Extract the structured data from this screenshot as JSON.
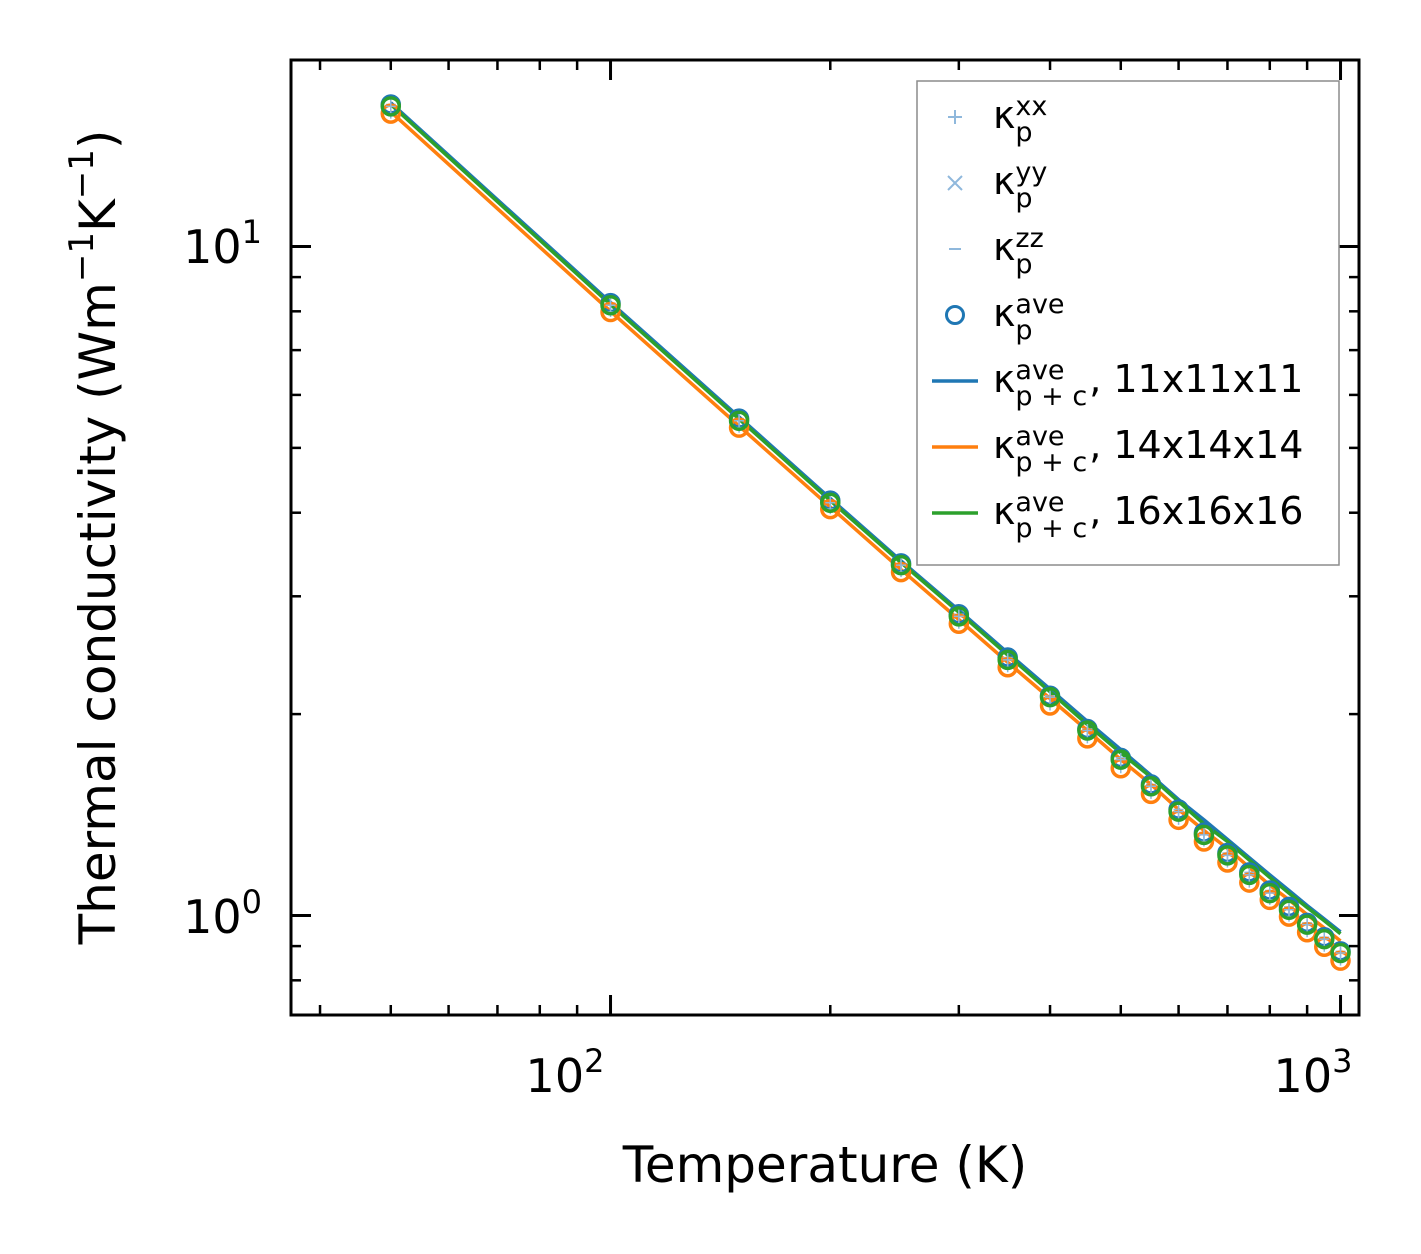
{
  "chart_data": {
    "type": "line",
    "title": "",
    "xlabel": "Temperature (K)",
    "ylabel": "Thermal conductivity (Wm",
    "ylabel_sup1": "−1",
    "ylabel_mid": "K",
    "ylabel_sup2": "−1",
    "ylabel_end": ")",
    "xscale": "log",
    "yscale": "log",
    "xlim": [
      36.5,
      1060
    ],
    "ylim": [
      0.71,
      19.0
    ],
    "x_ticks": [
      {
        "base": "10",
        "exp": "2",
        "value": 100
      },
      {
        "base": "10",
        "exp": "3",
        "value": 1000
      }
    ],
    "y_ticks": [
      {
        "base": "10",
        "exp": "0",
        "value": 1
      },
      {
        "base": "10",
        "exp": "1",
        "value": 10
      }
    ],
    "legend_position": "upper right",
    "legend": [
      {
        "sym": "κ",
        "sup": "xx",
        "sub": "p",
        "tail": "",
        "marker": "plus",
        "color": "#8fb8dc"
      },
      {
        "sym": "κ",
        "sup": "yy",
        "sub": "p",
        "tail": "",
        "marker": "x",
        "color": "#8fb8dc"
      },
      {
        "sym": "κ",
        "sup": "zz",
        "sub": "p",
        "tail": "",
        "marker": "hline",
        "color": "#8fb8dc"
      },
      {
        "sym": "κ",
        "sup": "ave",
        "sub": "p",
        "tail": "",
        "marker": "circle",
        "color": "#1f77b4"
      },
      {
        "sym": "κ",
        "sup": "ave",
        "sub": "p + c",
        "tail": ", 11x11x11",
        "marker": "line",
        "color": "#1f77b4"
      },
      {
        "sym": "κ",
        "sup": "ave",
        "sub": "p + c",
        "tail": ", 14x14x14",
        "marker": "line",
        "color": "#ff7f0e"
      },
      {
        "sym": "κ",
        "sup": "ave",
        "sub": "p + c",
        "tail": ", 16x16x16",
        "marker": "line",
        "color": "#2ca02c"
      }
    ],
    "x": [
      50,
      100,
      150,
      200,
      250,
      300,
      350,
      400,
      450,
      500,
      550,
      600,
      650,
      700,
      750,
      800,
      850,
      900,
      950,
      1000
    ],
    "series": [
      {
        "name": "11x11x11",
        "color": "#1f77b4",
        "kappa_p": [
          16.3,
          8.23,
          5.53,
          4.17,
          3.36,
          2.82,
          2.43,
          2.13,
          1.9,
          1.72,
          1.57,
          1.44,
          1.33,
          1.24,
          1.16,
          1.09,
          1.03,
          0.975,
          0.928,
          0.884
        ],
        "kappa_pc": [
          16.4,
          8.25,
          5.56,
          4.2,
          3.39,
          2.86,
          2.47,
          2.18,
          1.95,
          1.77,
          1.62,
          1.49,
          1.39,
          1.3,
          1.22,
          1.15,
          1.09,
          1.035,
          0.988,
          0.945
        ]
      },
      {
        "name": "14x14x14",
        "color": "#ff7f0e",
        "kappa_p": [
          15.8,
          7.98,
          5.36,
          4.05,
          3.26,
          2.73,
          2.35,
          2.06,
          1.84,
          1.66,
          1.52,
          1.39,
          1.29,
          1.2,
          1.12,
          1.055,
          0.996,
          0.944,
          0.898,
          0.856
        ],
        "kappa_pc": [
          15.9,
          8.0,
          5.39,
          4.08,
          3.29,
          2.77,
          2.39,
          2.11,
          1.89,
          1.71,
          1.57,
          1.44,
          1.34,
          1.26,
          1.18,
          1.11,
          1.055,
          1.003,
          0.958,
          0.916
        ]
      },
      {
        "name": "16x16x16",
        "color": "#2ca02c",
        "kappa_p": [
          16.2,
          8.17,
          5.49,
          4.14,
          3.34,
          2.8,
          2.41,
          2.12,
          1.89,
          1.71,
          1.56,
          1.43,
          1.32,
          1.23,
          1.15,
          1.08,
          1.02,
          0.969,
          0.922,
          0.879
        ],
        "kappa_pc": [
          16.3,
          8.19,
          5.52,
          4.17,
          3.37,
          2.84,
          2.45,
          2.16,
          1.93,
          1.75,
          1.61,
          1.48,
          1.37,
          1.29,
          1.21,
          1.14,
          1.08,
          1.028,
          0.982,
          0.939
        ]
      }
    ]
  }
}
